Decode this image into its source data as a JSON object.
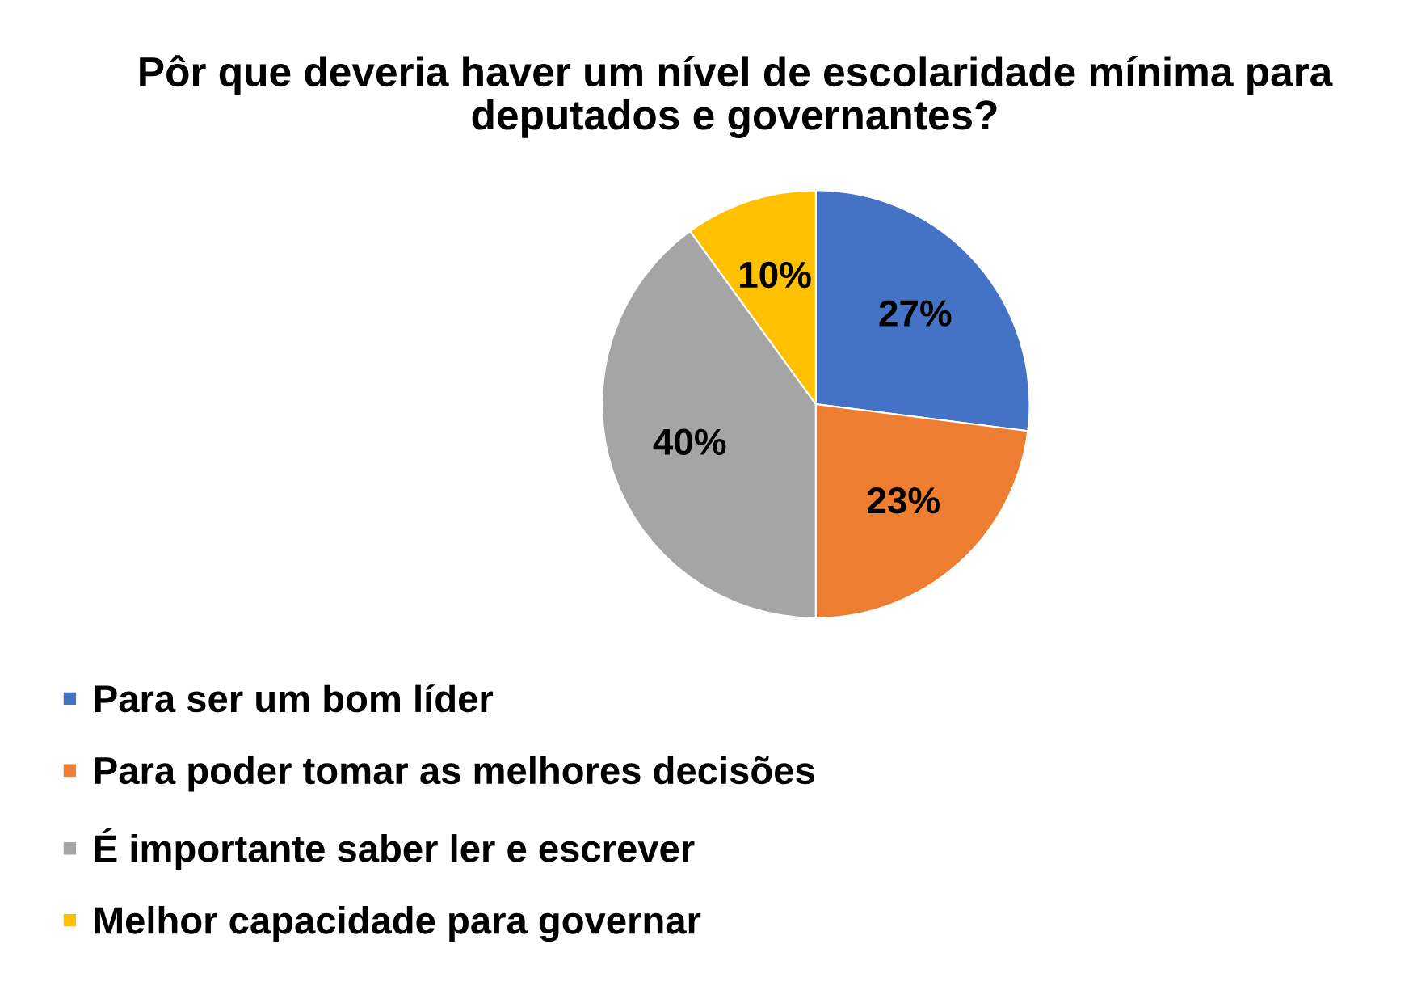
{
  "chart_data": {
    "type": "pie",
    "title": "Pôr que deveria haver um nível de escolaridade mínima para\ndeputados e governantes?",
    "categories": [
      "Para ser um bom líder",
      "Para poder tomar as melhores decisões",
      "É importante saber ler e escrever",
      "Melhor capacidade para governar"
    ],
    "values": [
      27,
      23,
      40,
      10
    ],
    "colors": [
      "#4472c4",
      "#ed7d31",
      "#a5a5a5",
      "#ffc000"
    ],
    "value_labels": [
      "27%",
      "23%",
      "40%",
      "10%"
    ],
    "legend": "bottom"
  }
}
